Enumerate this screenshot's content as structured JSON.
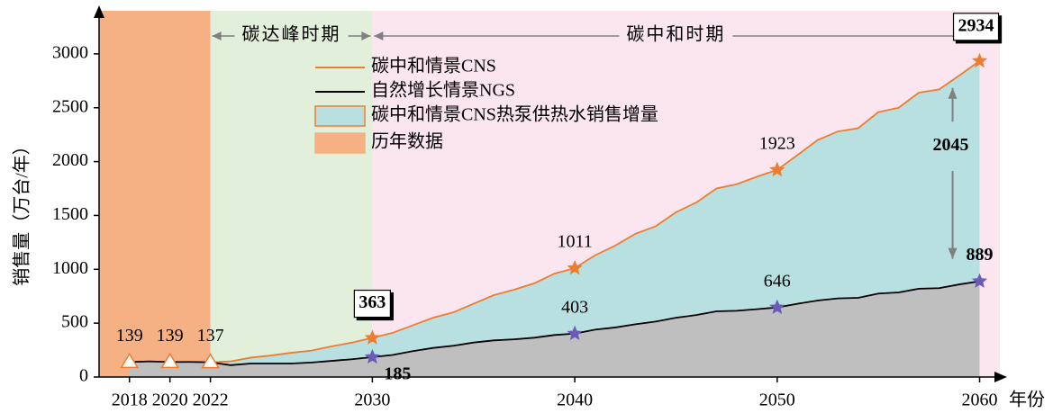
{
  "chart_data": {
    "type": "line",
    "y_label": "销售量（万台/年）",
    "x_label": "年份",
    "xlim": [
      2016.5,
      2061
    ],
    "xticks": [
      2018,
      2020,
      2022,
      2030,
      2040,
      2050,
      2060
    ],
    "ylim": [
      0,
      3400
    ],
    "yticks": [
      0,
      500,
      1000,
      1500,
      2000,
      2500,
      3000
    ],
    "periods": [
      {
        "name": "碳达峰时期",
        "start": 2022,
        "end": 2030,
        "color": "#e2efda"
      },
      {
        "name": "碳中和时期",
        "start": 2030,
        "end": 2060,
        "color": "#fbe5ee"
      }
    ],
    "history": {
      "name": "历年数据",
      "color": "#f5b184",
      "x": [
        2018,
        2020,
        2022
      ],
      "values": [
        139,
        139,
        137
      ]
    },
    "x": [
      2018,
      2019,
      2020,
      2021,
      2022,
      2023,
      2024,
      2025,
      2026,
      2027,
      2028,
      2029,
      2030,
      2031,
      2032,
      2033,
      2034,
      2035,
      2036,
      2037,
      2038,
      2039,
      2040,
      2041,
      2042,
      2043,
      2044,
      2045,
      2046,
      2047,
      2048,
      2049,
      2050,
      2051,
      2052,
      2053,
      2054,
      2055,
      2056,
      2057,
      2058,
      2059,
      2060
    ],
    "series": [
      {
        "name": "碳中和情景CNS",
        "color": "#ed7d31",
        "marker_color": "#ed7d31",
        "values": [
          null,
          null,
          null,
          null,
          137,
          145,
          180,
          200,
          225,
          245,
          285,
          320,
          363,
          410,
          480,
          550,
          600,
          680,
          760,
          810,
          870,
          960,
          1011,
          1130,
          1220,
          1330,
          1400,
          1530,
          1620,
          1750,
          1790,
          1860,
          1923,
          2060,
          2200,
          2280,
          2310,
          2460,
          2500,
          2640,
          2670,
          2800,
          2934
        ],
        "labeled_x": [
          2030,
          2040,
          2050,
          2060
        ],
        "boxed_x": [
          2030,
          2060
        ]
      },
      {
        "name": "自然增长情景NGS",
        "color": "#000000",
        "marker_color": "#6a5bb8",
        "values": [
          139,
          145,
          139,
          140,
          137,
          110,
          125,
          125,
          125,
          135,
          150,
          165,
          185,
          205,
          240,
          270,
          290,
          320,
          340,
          350,
          365,
          390,
          403,
          440,
          460,
          490,
          515,
          550,
          575,
          610,
          615,
          630,
          646,
          680,
          710,
          730,
          735,
          775,
          785,
          820,
          825,
          860,
          889
        ],
        "labeled_x": [
          2030,
          2040,
          2050,
          2060
        ],
        "bold_x": [
          2030,
          2060
        ]
      }
    ],
    "area": {
      "name": "碳中和情景CNS热泵供热水销售增量",
      "color": "#b8e0e1",
      "base_color": "#bfbfbf"
    },
    "difference": 2045
  }
}
